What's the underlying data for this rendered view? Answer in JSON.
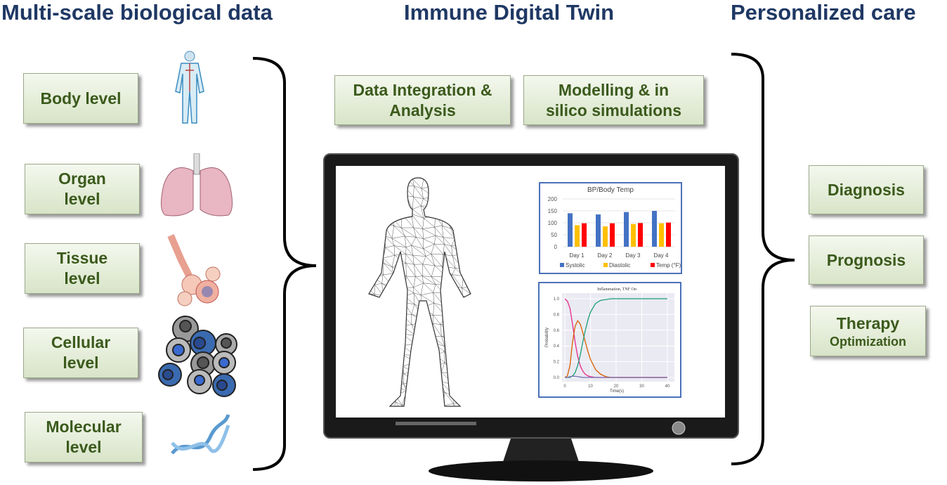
{
  "titles": {
    "left": "Multi-scale biological data",
    "center": "Immune Digital Twin",
    "right": "Personalized care"
  },
  "levels": [
    {
      "line1": "Body level",
      "line2": "",
      "icon": "human-body-icon"
    },
    {
      "line1": "Organ",
      "line2": "level",
      "icon": "lungs-icon"
    },
    {
      "line1": "Tissue",
      "line2": "level",
      "icon": "alveoli-tissue-icon"
    },
    {
      "line1": "Cellular",
      "line2": "level",
      "icon": "cells-icon"
    },
    {
      "line1": "Molecular",
      "line2": "level",
      "icon": "dna-icon"
    }
  ],
  "twin": [
    {
      "line1": "Data Integration &",
      "line2": "Analysis"
    },
    {
      "line1": "Modelling & in",
      "line2": "silico simulations"
    }
  ],
  "care": [
    {
      "line1": "Diagnosis",
      "line2": ""
    },
    {
      "line1": "Prognosis",
      "line2": ""
    },
    {
      "line1": "Therapy",
      "line2": "Optimization"
    }
  ],
  "colors": {
    "title": "#1f3864",
    "box_text": "#3b5a1c",
    "chart_border": "#4a72b8"
  },
  "chart_data": [
    {
      "type": "bar",
      "title": "BP/Body Temp",
      "categories": [
        "Day 1",
        "Day 2",
        "Day 3",
        "Day 4"
      ],
      "ylim": [
        0,
        200
      ],
      "yticks": [
        0,
        50,
        100,
        150,
        200
      ],
      "legend": "bottom",
      "grid": true,
      "series": [
        {
          "name": "Systolic",
          "color": "#4472c4",
          "values": [
            140,
            135,
            145,
            150
          ]
        },
        {
          "name": "Diastolic",
          "color": "#ffc000",
          "values": [
            90,
            85,
            95,
            98
          ]
        },
        {
          "name": "Temp (°F)",
          "color": "#ff0000",
          "values": [
            98,
            98,
            99,
            101
          ]
        }
      ]
    },
    {
      "type": "line",
      "title": "Inflammation, TNF On",
      "xlabel": "Time(s)",
      "ylabel": "Probability",
      "xlim": [
        0,
        40
      ],
      "ylim": [
        0,
        1
      ],
      "xticks": [
        0,
        10,
        20,
        30,
        40
      ],
      "yticks": [
        "0.0",
        "0.2",
        "0.4",
        "0.6",
        "0.8",
        "1.0"
      ],
      "grid": true,
      "x": [
        0,
        1,
        2,
        3,
        4,
        5,
        6,
        7,
        8,
        9,
        10,
        12,
        14,
        16,
        18,
        20,
        25,
        30,
        35,
        40
      ],
      "series": [
        {
          "color": "#e7298a",
          "values": [
            1.0,
            0.97,
            0.88,
            0.68,
            0.45,
            0.27,
            0.15,
            0.08,
            0.04,
            0.02,
            0.01,
            0,
            0,
            0,
            0,
            0,
            0,
            0,
            0,
            0
          ]
        },
        {
          "color": "#d95f02",
          "values": [
            0,
            0.02,
            0.15,
            0.45,
            0.65,
            0.72,
            0.68,
            0.57,
            0.45,
            0.33,
            0.23,
            0.1,
            0.04,
            0.01,
            0,
            0,
            0,
            0,
            0,
            0
          ]
        },
        {
          "color": "#1b9e77",
          "values": [
            0,
            0,
            0,
            0.02,
            0.06,
            0.15,
            0.28,
            0.45,
            0.6,
            0.73,
            0.83,
            0.94,
            0.98,
            0.99,
            1.0,
            1.0,
            1.0,
            1.0,
            1.0,
            1.0
          ]
        },
        {
          "color": "#7570b3",
          "values": [
            0,
            0,
            0.01,
            0.015,
            0.015,
            0.01,
            0.005,
            0,
            0,
            0,
            0,
            0,
            0,
            0,
            0,
            0,
            0,
            0,
            0,
            0
          ]
        }
      ]
    }
  ]
}
